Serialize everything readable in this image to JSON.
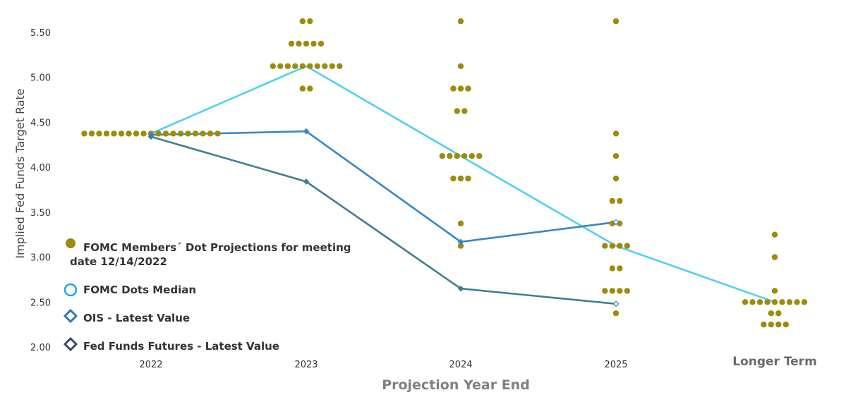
{
  "chart_data": {
    "type": "scatter",
    "xlabel": "Projection Year End",
    "ylabel": "Implied Fed Funds Target Rate",
    "categories": [
      "2022",
      "2023",
      "2024",
      "2025",
      "Longer Term"
    ],
    "ylim": [
      2.0,
      5.5
    ],
    "yticks": [
      "2.00",
      "2.50",
      "3.00",
      "3.50",
      "4.00",
      "4.50",
      "5.00",
      "5.50"
    ],
    "grid": false,
    "legend_position": "left",
    "series": [
      {
        "name": "FOMC Members´ Dot Projections for meeting date 12/14/2022",
        "kind": "dots",
        "color": "#9c8b0c",
        "points": [
          {
            "x": "2022",
            "y": 4.375,
            "count": 19
          },
          {
            "x": "2023",
            "y": 5.625,
            "count": 2
          },
          {
            "x": "2023",
            "y": 5.375,
            "count": 5
          },
          {
            "x": "2023",
            "y": 5.125,
            "count": 10
          },
          {
            "x": "2023",
            "y": 4.875,
            "count": 2
          },
          {
            "x": "2024",
            "y": 5.625,
            "count": 1
          },
          {
            "x": "2024",
            "y": 5.125,
            "count": 1
          },
          {
            "x": "2024",
            "y": 4.875,
            "count": 3
          },
          {
            "x": "2024",
            "y": 4.625,
            "count": 2
          },
          {
            "x": "2024",
            "y": 4.125,
            "count": 6
          },
          {
            "x": "2024",
            "y": 3.875,
            "count": 3
          },
          {
            "x": "2024",
            "y": 3.375,
            "count": 1
          },
          {
            "x": "2024",
            "y": 3.125,
            "count": 1
          },
          {
            "x": "2025",
            "y": 5.625,
            "count": 1
          },
          {
            "x": "2025",
            "y": 4.375,
            "count": 1
          },
          {
            "x": "2025",
            "y": 4.125,
            "count": 1
          },
          {
            "x": "2025",
            "y": 3.875,
            "count": 1
          },
          {
            "x": "2025",
            "y": 3.625,
            "count": 2
          },
          {
            "x": "2025",
            "y": 3.375,
            "count": 2
          },
          {
            "x": "2025",
            "y": 3.125,
            "count": 4
          },
          {
            "x": "2025",
            "y": 2.875,
            "count": 2
          },
          {
            "x": "2025",
            "y": 2.625,
            "count": 4
          },
          {
            "x": "2025",
            "y": 2.375,
            "count": 1
          },
          {
            "x": "Longer Term",
            "y": 3.25,
            "count": 1
          },
          {
            "x": "Longer Term",
            "y": 3.0,
            "count": 1
          },
          {
            "x": "Longer Term",
            "y": 2.625,
            "count": 1
          },
          {
            "x": "Longer Term",
            "y": 2.5,
            "count": 9
          },
          {
            "x": "Longer Term",
            "y": 2.375,
            "count": 2
          },
          {
            "x": "Longer Term",
            "y": 2.25,
            "count": 4
          }
        ]
      },
      {
        "name": "FOMC Dots Median",
        "kind": "line",
        "color": "#4fd0f0",
        "marker": "circle",
        "x": [
          "2022",
          "2023",
          "2024",
          "2025",
          "Longer Term"
        ],
        "values": [
          4.375,
          5.125,
          4.125,
          3.125,
          2.5
        ]
      },
      {
        "name": "OIS - Latest Value",
        "kind": "line",
        "color": "#3a86c4",
        "marker": "diamond",
        "x": [
          "2022",
          "2023",
          "2024",
          "2025"
        ],
        "values": [
          4.36,
          4.4,
          3.17,
          3.39
        ]
      },
      {
        "name": "Fed Funds Futures - Latest Value",
        "kind": "line",
        "color": "#3f7f90",
        "marker": "diamond",
        "x": [
          "2022",
          "2023",
          "2024",
          "2025"
        ],
        "values": [
          4.34,
          3.84,
          2.65,
          2.48
        ]
      }
    ]
  },
  "legend": {
    "dots_line1": "FOMC Members´ Dot Projections for meeting",
    "dots_line2": "date 12/14/2022",
    "median": "FOMC Dots Median",
    "ois": "OIS - Latest Value",
    "futures": "Fed Funds Futures - Latest Value"
  },
  "legend_colors": {
    "dots_fill": "#9c8b0c",
    "median_stroke": "#1aa8e0",
    "ois_stroke": "#2f78bd",
    "futures_stroke": "#3e4b63"
  }
}
